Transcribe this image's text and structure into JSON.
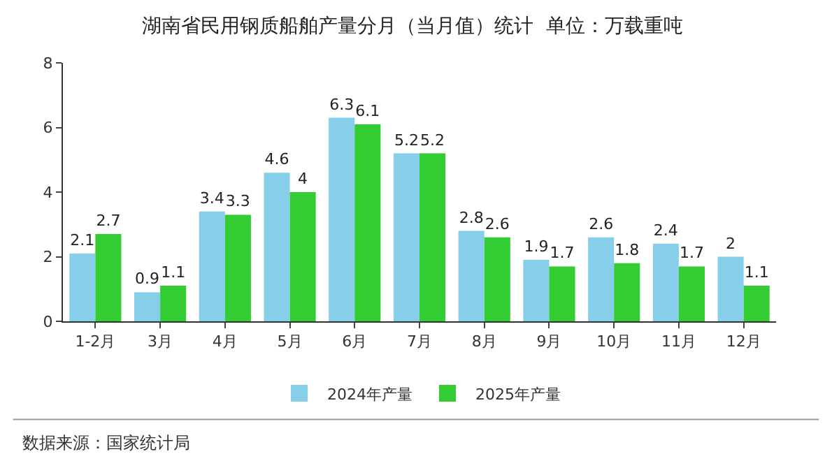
{
  "chart_data": {
    "type": "bar",
    "title": "湖南省民用钢质船舶产量分月（当月值）统计  单位：万载重吨",
    "categories": [
      "1-2月",
      "3月",
      "4月",
      "5月",
      "6月",
      "7月",
      "8月",
      "9月",
      "10月",
      "11月",
      "12月"
    ],
    "series": [
      {
        "name": "2024年产量",
        "color": "#87ceeb",
        "values": [
          2.1,
          0.9,
          3.4,
          4.6,
          6.3,
          5.2,
          2.8,
          1.9,
          2.6,
          2.4,
          2
        ]
      },
      {
        "name": "2025年产量",
        "color": "#33cc33",
        "values": [
          2.7,
          1.1,
          3.3,
          4,
          6.1,
          5.2,
          2.6,
          1.7,
          1.8,
          1.7,
          1.1
        ]
      }
    ],
    "ylim": [
      0,
      8
    ],
    "yticks": [
      0,
      2,
      4,
      6,
      8
    ],
    "grid": false,
    "legend": "bottom",
    "data_labels": true,
    "annotations": [
      "数据来源：国家统计局"
    ]
  }
}
